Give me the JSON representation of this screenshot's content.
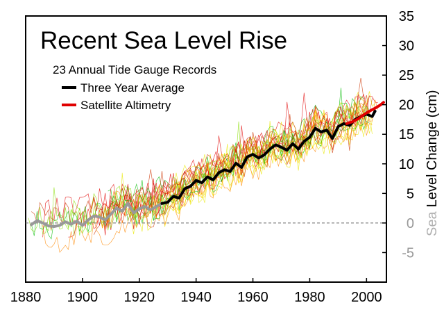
{
  "chart_data": {
    "type": "line",
    "title": "Recent Sea Level Rise",
    "xlabel": "",
    "ylabel": "Sea Level Change (cm)",
    "ylabel_parts": {
      "faded": "Sea",
      "dark": "Level Change (cm)"
    },
    "xlim": [
      1880,
      2007
    ],
    "ylim": [
      -10,
      35
    ],
    "x_ticks": [
      1880,
      1900,
      1920,
      1940,
      1960,
      1980,
      2000
    ],
    "y_ticks": [
      -5,
      0,
      5,
      10,
      15,
      20,
      25,
      30,
      35
    ],
    "zero_line": 0,
    "annotations": {
      "gauge_records": "23 Annual Tide Gauge Records"
    },
    "legend": [
      {
        "label": "Three Year Average",
        "color": "#000000"
      },
      {
        "label": "Satellite Altimetry",
        "color": "#e00000"
      }
    ],
    "colors": {
      "average_early": "#999999",
      "average_late": "#000000",
      "satellite": "#e00000",
      "gauges": [
        "#e00000",
        "#ff8800",
        "#ffd000",
        "#00bb00",
        "#88dd00",
        "#e8e800",
        "#cc3300"
      ]
    },
    "series": [
      {
        "name": "Three Year Average",
        "x": [
          1882,
          1884,
          1886,
          1888,
          1890,
          1892,
          1894,
          1896,
          1898,
          1900,
          1902,
          1904,
          1906,
          1908,
          1910,
          1912,
          1914,
          1916,
          1918,
          1920,
          1922,
          1924,
          1926,
          1928,
          1930,
          1932,
          1934,
          1936,
          1938,
          1940,
          1942,
          1944,
          1946,
          1948,
          1950,
          1952,
          1954,
          1956,
          1958,
          1960,
          1962,
          1964,
          1966,
          1968,
          1970,
          1972,
          1974,
          1976,
          1978,
          1980,
          1982,
          1984,
          1986,
          1988,
          1990,
          1992,
          1994,
          1996,
          1998,
          2000,
          2002,
          2003
        ],
        "values": [
          -0.3,
          0.4,
          0.0,
          -0.5,
          -0.6,
          -0.4,
          0.2,
          -0.2,
          0.3,
          -0.4,
          0.5,
          1.2,
          1.0,
          0.5,
          1.5,
          2.5,
          2.0,
          3.3,
          1.7,
          2.4,
          2.8,
          2.2,
          2.8,
          3.3,
          3.5,
          4.5,
          4.2,
          5.8,
          6.2,
          7.2,
          6.8,
          7.8,
          7.3,
          8.5,
          9.0,
          8.7,
          10.1,
          9.4,
          11.2,
          11.6,
          11.0,
          11.5,
          12.5,
          13.2,
          12.8,
          12.3,
          13.4,
          12.5,
          13.8,
          14.5,
          16.0,
          15.4,
          15.7,
          14.3,
          16.3,
          16.8,
          16.5,
          17.5,
          18.0,
          18.4,
          18.0,
          18.9
        ]
      },
      {
        "name": "Satellite Altimetry",
        "x": [
          1993,
          1995,
          1997,
          1999,
          2001,
          2003,
          2005,
          2006
        ],
        "values": [
          16.8,
          17.1,
          17.6,
          18.3,
          18.9,
          19.4,
          20.0,
          20.4
        ]
      }
    ]
  }
}
